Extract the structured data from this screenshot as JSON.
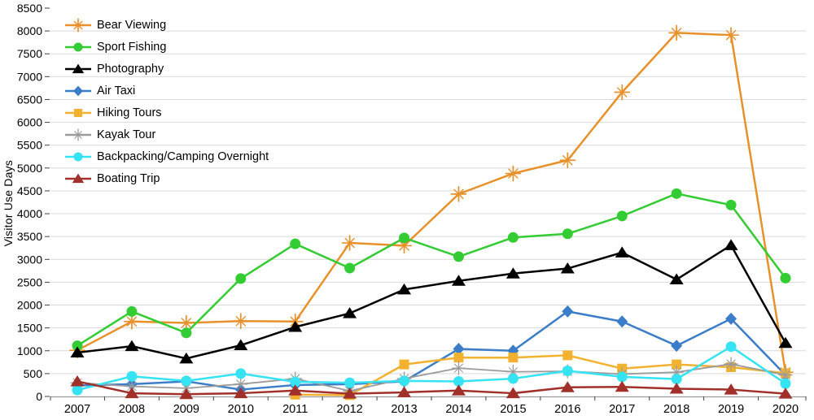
{
  "chart_data": {
    "type": "line",
    "title": "",
    "xlabel": "",
    "ylabel": "Visitor Use Days",
    "ylim": [
      0,
      8500
    ],
    "ytick_step": 500,
    "grid": true,
    "legend_position": "top-left",
    "x": [
      "2007",
      "2008",
      "2009",
      "2010",
      "2011",
      "2012",
      "2013",
      "2014",
      "2015",
      "2016",
      "2017",
      "2018",
      "2019",
      "2020"
    ],
    "series": [
      {
        "name": "Bear Viewing",
        "color": "#E8912B",
        "marker": "star",
        "values": [
          1010,
          1640,
          1610,
          1650,
          1640,
          3360,
          3300,
          4430,
          4880,
          5170,
          6660,
          7960,
          7910,
          530
        ]
      },
      {
        "name": "Sport Fishing",
        "color": "#33CC33",
        "marker": "circle",
        "values": [
          1110,
          1860,
          1390,
          2580,
          3340,
          2810,
          3470,
          3060,
          3480,
          3560,
          3950,
          4440,
          4190,
          2590
        ]
      },
      {
        "name": "Photography",
        "color": "#000000",
        "marker": "triangle",
        "values": [
          960,
          1100,
          830,
          1120,
          1520,
          1820,
          2340,
          2530,
          2690,
          2800,
          3150,
          2560,
          3310,
          1170
        ]
      },
      {
        "name": "Air Taxi",
        "color": "#3B7DC8",
        "marker": "diamond",
        "values": [
          240,
          270,
          330,
          150,
          250,
          270,
          330,
          1040,
          1000,
          1860,
          1640,
          1110,
          1700,
          470
        ]
      },
      {
        "name": "Hiking Tours",
        "color": "#F2B230",
        "marker": "square",
        "values": [
          null,
          null,
          null,
          null,
          40,
          30,
          700,
          850,
          850,
          900,
          610,
          700,
          640,
          510
        ]
      },
      {
        "name": "Kayak Tour",
        "color": "#9B9B9B",
        "marker": "asterisk",
        "values": [
          300,
          220,
          180,
          270,
          390,
          120,
          390,
          620,
          540,
          550,
          490,
          530,
          710,
          470
        ]
      },
      {
        "name": "Backpacking/Camping Overnight",
        "color": "#35E3F2",
        "marker": "circle",
        "values": [
          140,
          440,
          340,
          500,
          320,
          300,
          340,
          330,
          390,
          560,
          430,
          380,
          1090,
          280
        ]
      },
      {
        "name": "Boating Trip",
        "color": "#A1302A",
        "marker": "triangle",
        "values": [
          330,
          70,
          50,
          70,
          130,
          60,
          90,
          130,
          70,
          200,
          210,
          170,
          150,
          60
        ]
      }
    ]
  }
}
